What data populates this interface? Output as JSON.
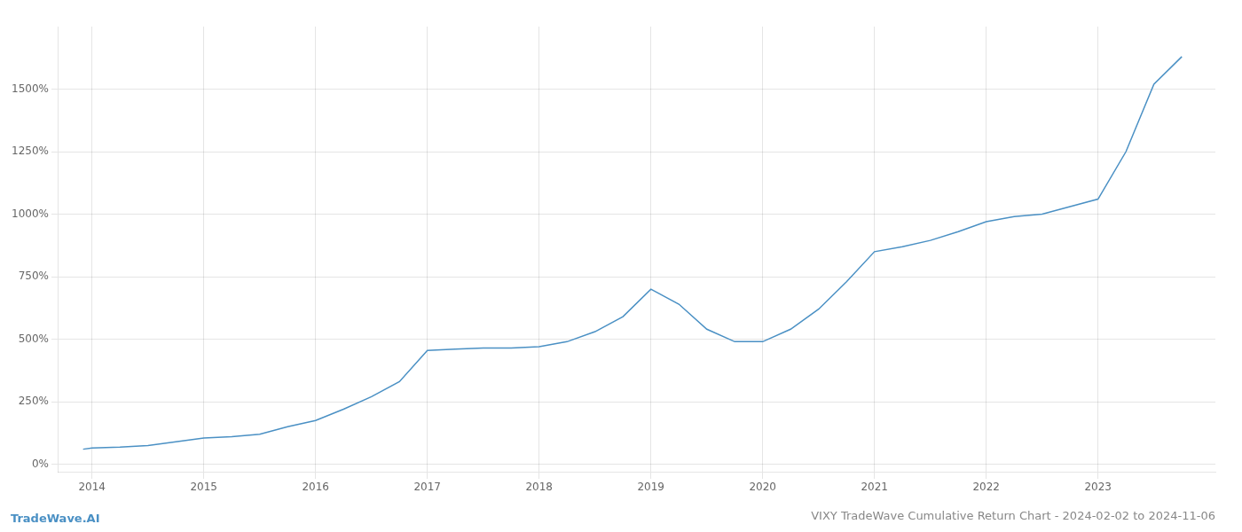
{
  "chart_data": {
    "type": "line",
    "title": "VIXY TradeWave Cumulative Return Chart - 2024-02-02 to 2024-11-06",
    "annotations": [
      "TradeWave.AI"
    ],
    "x": [
      2013.92,
      2014.0,
      2014.25,
      2014.5,
      2014.75,
      2015.0,
      2015.25,
      2015.5,
      2015.75,
      2016.0,
      2016.25,
      2016.5,
      2016.75,
      2017.0,
      2017.25,
      2017.5,
      2017.75,
      2018.0,
      2018.25,
      2018.5,
      2018.75,
      2019.0,
      2019.25,
      2019.5,
      2019.75,
      2020.0,
      2020.25,
      2020.5,
      2020.75,
      2021.0,
      2021.25,
      2021.5,
      2021.75,
      2022.0,
      2022.25,
      2022.5,
      2022.75,
      2023.0,
      2023.25,
      2023.5,
      2023.75
    ],
    "values": [
      60,
      65,
      68,
      75,
      90,
      105,
      110,
      120,
      150,
      175,
      220,
      270,
      330,
      455,
      460,
      465,
      465,
      470,
      490,
      530,
      590,
      700,
      640,
      540,
      490,
      490,
      540,
      620,
      730,
      850,
      870,
      895,
      930,
      970,
      990,
      1000,
      1030,
      1060,
      1250,
      1520,
      1630
    ],
    "color": "#4a90c4",
    "xlim": [
      2013.7,
      2024.05
    ],
    "xticks": [
      2014,
      2015,
      2016,
      2017,
      2018,
      2019,
      2020,
      2021,
      2022,
      2023
    ],
    "ylim": [
      -30,
      1750
    ],
    "yticks": [
      {
        "value": 0,
        "label": "0%"
      },
      {
        "value": 250,
        "label": "250%"
      },
      {
        "value": 500,
        "label": "500%"
      },
      {
        "value": 750,
        "label": "750%"
      },
      {
        "value": 1000,
        "label": "1000%"
      },
      {
        "value": 1250,
        "label": "1250%"
      },
      {
        "value": 1500,
        "label": "1500%"
      }
    ],
    "grid": true
  }
}
